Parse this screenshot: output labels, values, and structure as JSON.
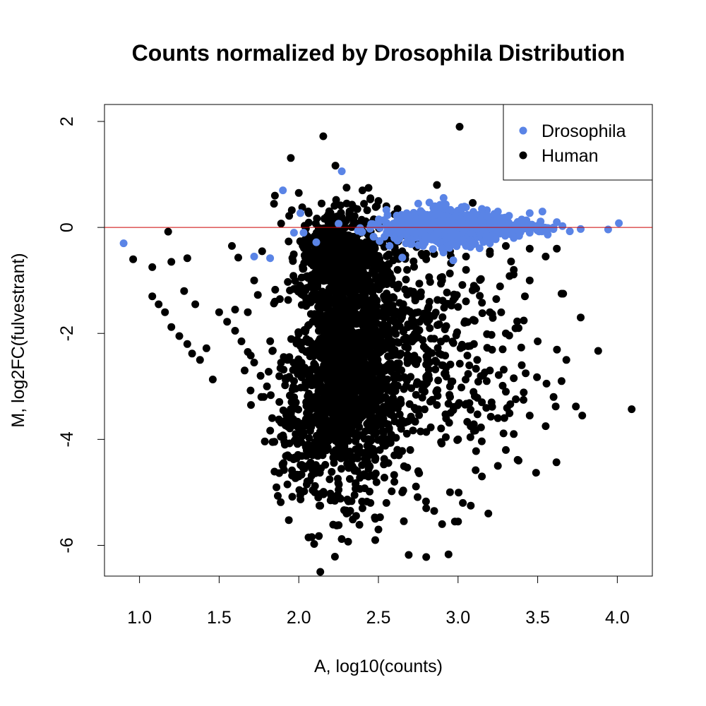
{
  "chart_data": {
    "type": "scatter",
    "title": "Counts normalized by Drosophila Distribution",
    "xlabel": "A, log10(counts)",
    "ylabel": "M, log2FC(fulvestrant)",
    "xlim": [
      0.78,
      4.22
    ],
    "ylim": [
      -6.58,
      2.32
    ],
    "xticks": [
      1.0,
      1.5,
      2.0,
      2.5,
      3.0,
      3.5,
      4.0
    ],
    "xtick_labels": [
      "1.0",
      "1.5",
      "2.0",
      "2.5",
      "3.0",
      "3.5",
      "4.0"
    ],
    "yticks": [
      2,
      0,
      -2,
      -4,
      -6
    ],
    "ytick_labels": [
      "2",
      "0",
      "-2",
      "-4",
      "-6"
    ],
    "reference_line": {
      "y": 0,
      "color": "#cc0000"
    },
    "grid": false,
    "legend_position": "top-right",
    "series": [
      {
        "name": "Drosophila",
        "color": "#5a84e6",
        "points": [
          [
            0.9,
            -0.3
          ],
          [
            1.9,
            0.7
          ],
          [
            1.72,
            -0.55
          ],
          [
            1.82,
            -0.58
          ],
          [
            1.97,
            -0.1
          ],
          [
            2.01,
            0.27
          ],
          [
            2.27,
            1.06
          ],
          [
            2.25,
            0.07
          ],
          [
            2.11,
            -0.28
          ],
          [
            2.03,
            -0.1
          ],
          [
            2.55,
            0.33
          ],
          [
            2.55,
            0.05
          ],
          [
            2.6,
            -0.2
          ],
          [
            2.57,
            -0.35
          ],
          [
            2.65,
            -0.57
          ],
          [
            2.97,
            -0.62
          ],
          [
            3.32,
            0.22
          ],
          [
            3.45,
            0.27
          ],
          [
            3.53,
            0.3
          ],
          [
            3.56,
            -0.05
          ],
          [
            3.62,
            0.1
          ],
          [
            3.77,
            -0.03
          ],
          [
            4.01,
            0.08
          ],
          [
            2.45,
            0.01
          ],
          [
            2.51,
            -0.01
          ],
          [
            2.75,
            0.45
          ],
          [
            2.82,
            0.47
          ],
          [
            2.92,
            0.42
          ],
          [
            3.05,
            0.38
          ],
          [
            3.15,
            0.35
          ],
          [
            3.25,
            0.3
          ],
          [
            2.62,
            -0.25
          ],
          [
            2.78,
            -0.35
          ],
          [
            2.9,
            -0.4
          ],
          [
            3.05,
            -0.35
          ],
          [
            3.2,
            -0.3
          ],
          [
            3.35,
            -0.2
          ],
          [
            3.45,
            -0.1
          ],
          [
            3.4,
            0.15
          ],
          [
            2.68,
            0.25
          ],
          [
            2.72,
            -0.1
          ],
          [
            2.85,
            0.1
          ],
          [
            2.95,
            -0.05
          ],
          [
            3.1,
            0.12
          ],
          [
            3.3,
            -0.05
          ],
          [
            3.5,
            0.02
          ],
          [
            3.6,
            0.0
          ],
          [
            2.88,
            0.25
          ],
          [
            3.0,
            -0.22
          ],
          [
            3.18,
            -0.15
          ]
        ]
      },
      {
        "name": "Human",
        "color": "#000000",
        "points": [
          [
            1.95,
            1.31
          ],
          [
            2.3,
            0.75
          ],
          [
            2.4,
            0.7
          ],
          [
            2.0,
            0.65
          ],
          [
            1.85,
            0.6
          ],
          [
            0.96,
            -0.6
          ],
          [
            1.08,
            -0.75
          ],
          [
            1.18,
            -0.08
          ],
          [
            1.2,
            -0.65
          ],
          [
            1.3,
            -0.58
          ],
          [
            1.28,
            -1.2
          ],
          [
            1.58,
            -0.35
          ],
          [
            1.62,
            -0.57
          ],
          [
            1.77,
            -0.45
          ],
          [
            1.08,
            -1.3
          ],
          [
            1.12,
            -1.45
          ],
          [
            1.16,
            -1.6
          ],
          [
            1.2,
            -1.88
          ],
          [
            1.25,
            -2.05
          ],
          [
            1.3,
            -2.2
          ],
          [
            1.33,
            -2.38
          ],
          [
            1.38,
            -2.5
          ],
          [
            1.42,
            -2.28
          ],
          [
            1.46,
            -2.87
          ],
          [
            1.35,
            -1.45
          ],
          [
            1.5,
            -1.6
          ],
          [
            1.55,
            -1.78
          ],
          [
            1.6,
            -1.95
          ],
          [
            1.64,
            -2.15
          ],
          [
            1.68,
            -2.35
          ],
          [
            1.72,
            -2.55
          ],
          [
            1.76,
            -2.8
          ],
          [
            1.8,
            -3.0
          ],
          [
            1.7,
            -3.35
          ],
          [
            1.78,
            -3.2
          ],
          [
            1.68,
            -1.6
          ],
          [
            1.72,
            -1.0
          ],
          [
            1.85,
            -1.4
          ],
          [
            1.6,
            -1.55
          ],
          [
            1.66,
            -2.7
          ],
          [
            1.9,
            -4.5
          ],
          [
            1.93,
            -4.3
          ],
          [
            2.0,
            -4.7
          ],
          [
            2.05,
            -4.85
          ],
          [
            2.1,
            -5.0
          ],
          [
            2.13,
            -5.25
          ],
          [
            2.2,
            -5.15
          ],
          [
            2.25,
            -4.95
          ],
          [
            2.3,
            -5.4
          ],
          [
            2.35,
            -5.05
          ],
          [
            2.4,
            -5.3
          ],
          [
            2.45,
            -5.2
          ],
          [
            2.48,
            -5.5
          ],
          [
            2.48,
            -5.9
          ],
          [
            2.5,
            -5.7
          ],
          [
            2.31,
            -5.93
          ],
          [
            2.69,
            -6.18
          ],
          [
            2.8,
            -6.22
          ],
          [
            2.94,
            -6.17
          ],
          [
            2.8,
            -5.3
          ],
          [
            2.85,
            -5.35
          ],
          [
            2.9,
            -5.6
          ],
          [
            2.98,
            -5.55
          ],
          [
            3.03,
            -5.2
          ],
          [
            3.08,
            -5.25
          ],
          [
            3.0,
            -5.55
          ],
          [
            3.19,
            -5.4
          ],
          [
            3.15,
            -4.7
          ],
          [
            3.25,
            -4.5
          ],
          [
            3.3,
            -4.2
          ],
          [
            3.35,
            -3.9
          ],
          [
            3.38,
            -4.4
          ],
          [
            3.45,
            -3.55
          ],
          [
            3.49,
            -4.63
          ],
          [
            3.55,
            -3.75
          ],
          [
            3.6,
            -3.2
          ],
          [
            3.65,
            -2.9
          ],
          [
            3.68,
            -2.5
          ],
          [
            3.74,
            -3.38
          ],
          [
            3.78,
            -3.55
          ],
          [
            3.88,
            -2.33
          ],
          [
            4.09,
            -3.43
          ],
          [
            3.77,
            -1.7
          ],
          [
            3.66,
            -1.25
          ],
          [
            3.65,
            -1.25
          ],
          [
            3.55,
            -0.55
          ],
          [
            3.5,
            -2.15
          ],
          [
            3.4,
            -2.6
          ],
          [
            3.3,
            -2.0
          ],
          [
            3.2,
            -1.6
          ],
          [
            3.1,
            -1.1
          ],
          [
            3.05,
            -0.8
          ],
          [
            3.2,
            -0.5
          ],
          [
            3.35,
            -0.8
          ],
          [
            3.45,
            -1.0
          ],
          [
            3.25,
            -3.6
          ],
          [
            3.15,
            -3.3
          ],
          [
            3.1,
            -3.8
          ],
          [
            3.0,
            -4.0
          ],
          [
            2.95,
            -3.2
          ],
          [
            2.9,
            -2.6
          ],
          [
            2.85,
            -2.1
          ],
          [
            2.75,
            -1.6
          ],
          [
            2.7,
            -1.2
          ],
          [
            2.68,
            -0.8
          ],
          [
            2.8,
            -0.6
          ],
          [
            2.9,
            -1.0
          ],
          [
            3.0,
            -1.5
          ],
          [
            3.1,
            -2.2
          ],
          [
            3.2,
            -2.7
          ],
          [
            3.3,
            -3.1
          ],
          [
            2.65,
            -3.7
          ],
          [
            2.7,
            -4.2
          ],
          [
            2.75,
            -4.6
          ],
          [
            2.6,
            -4.3
          ],
          [
            2.55,
            -4.0
          ],
          [
            2.6,
            -4.8
          ],
          [
            2.65,
            -5.0
          ],
          [
            2.55,
            -5.2
          ],
          [
            3.04,
            -1.8
          ],
          [
            3.12,
            -2.5
          ],
          [
            3.18,
            -2.9
          ],
          [
            3.28,
            -2.3
          ],
          [
            3.38,
            -1.9
          ],
          [
            3.42,
            -1.3
          ],
          [
            2.6,
            0.25
          ],
          [
            2.5,
            0.5
          ],
          [
            2.45,
            0.55
          ],
          [
            2.55,
            0.4
          ],
          [
            2.62,
            0.35
          ],
          [
            2.7,
            0.15
          ],
          [
            2.65,
            -0.45
          ],
          [
            2.75,
            -0.3
          ],
          [
            2.85,
            -0.5
          ],
          [
            2.95,
            -0.45
          ],
          [
            3.05,
            -0.55
          ],
          [
            3.2,
            -0.45
          ],
          [
            3.3,
            -0.35
          ],
          [
            3.45,
            -0.4
          ],
          [
            3.62,
            -0.4
          ]
        ],
        "dense_regions": [
          {
            "x_center": 2.3,
            "y_center": -2.6,
            "x_spread": 0.16,
            "y_spread": 1.15,
            "count": 1400
          },
          {
            "x_center": 2.25,
            "y_center": -0.5,
            "x_spread": 0.12,
            "y_spread": 0.45,
            "count": 450
          },
          {
            "x_center": 2.55,
            "y_center": -2.2,
            "x_spread": 0.2,
            "y_spread": 1.1,
            "count": 350
          },
          {
            "x_center": 2.9,
            "y_center": -2.4,
            "x_spread": 0.3,
            "y_spread": 1.2,
            "count": 200
          },
          {
            "x_center": 2.05,
            "y_center": -3.7,
            "x_spread": 0.12,
            "y_spread": 0.7,
            "count": 180
          }
        ]
      }
    ],
    "drosophila_dense_region": {
      "x_center": 3.0,
      "y_center": 0.0,
      "x_spread": 0.22,
      "y_spread": 0.17,
      "count": 900
    }
  }
}
